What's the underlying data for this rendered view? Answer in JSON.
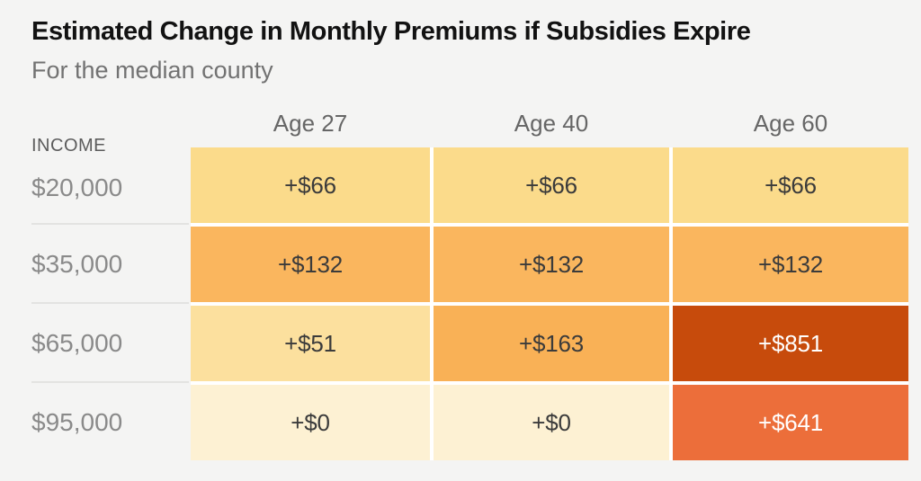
{
  "header": {
    "title": "Estimated Change in Monthly Premiums if Subsidies Expire",
    "subtitle": "For the median county"
  },
  "table": {
    "income_header": "INCOME",
    "column_headers": [
      "Age 27",
      "Age 40",
      "Age 60"
    ],
    "rows": [
      {
        "income": "$20,000",
        "cells": [
          {
            "label": "+$66",
            "bg": "#fbdb8b",
            "fg": "#3b3b3b"
          },
          {
            "label": "+$66",
            "bg": "#fbdb8b",
            "fg": "#3b3b3b"
          },
          {
            "label": "+$66",
            "bg": "#fbdb8b",
            "fg": "#3b3b3b"
          }
        ]
      },
      {
        "income": "$35,000",
        "cells": [
          {
            "label": "+$132",
            "bg": "#fab65e",
            "fg": "#3b3b3b"
          },
          {
            "label": "+$132",
            "bg": "#fab65e",
            "fg": "#3b3b3b"
          },
          {
            "label": "+$132",
            "bg": "#fab65e",
            "fg": "#3b3b3b"
          }
        ]
      },
      {
        "income": "$65,000",
        "cells": [
          {
            "label": "+$51",
            "bg": "#fce09e",
            "fg": "#3b3b3b"
          },
          {
            "label": "+$163",
            "bg": "#f9b156",
            "fg": "#3b3b3b"
          },
          {
            "label": "+$851",
            "bg": "#c74b0c",
            "fg": "#ffffff"
          }
        ]
      },
      {
        "income": "$95,000",
        "cells": [
          {
            "label": "+$0",
            "bg": "#fdf1d3",
            "fg": "#3b3b3b"
          },
          {
            "label": "+$0",
            "bg": "#fdf1d3",
            "fg": "#3b3b3b"
          },
          {
            "label": "+$641",
            "bg": "#ec6e3a",
            "fg": "#ffffff"
          }
        ]
      }
    ]
  },
  "colors": {
    "page_background": "#f4f4f3",
    "grid_gap": "#ffffff",
    "label_divider": "#e3e3e1"
  },
  "chart_data": {
    "type": "heatmap",
    "title": "Estimated Change in Monthly Premiums if Subsidies Expire",
    "subtitle": "For the median county",
    "x_categories": [
      "Age 27",
      "Age 40",
      "Age 60"
    ],
    "y_categories": [
      "$20,000",
      "$35,000",
      "$65,000",
      "$95,000"
    ],
    "y_axis_label": "INCOME",
    "values": [
      [
        66,
        66,
        66
      ],
      [
        132,
        132,
        132
      ],
      [
        51,
        163,
        851
      ],
      [
        0,
        0,
        641
      ]
    ],
    "value_labels": [
      [
        "+$66",
        "+$66",
        "+$66"
      ],
      [
        "+$132",
        "+$132",
        "+$132"
      ],
      [
        "+$51",
        "+$163",
        "+$851"
      ],
      [
        "+$0",
        "+$0",
        "+$641"
      ]
    ],
    "color_scale": [
      "#fdf1d3",
      "#fce09e",
      "#fbdb8b",
      "#fab65e",
      "#f9b156",
      "#ec6e3a",
      "#c74b0c"
    ],
    "legend": "none",
    "grid": "cell-gaps-white"
  }
}
